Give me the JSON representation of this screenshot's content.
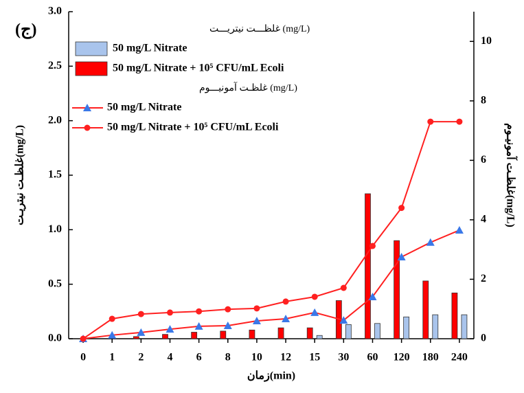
{
  "chart_data": {
    "type": "bar",
    "panel_label": "(ج)",
    "xlabel": "زمان(min)",
    "ylabel": "غلظـت نیتریـت(mg/L)",
    "y2label": "غلظـت آمونیـوم(mg/L)",
    "nitrite_legend_title": "(mg/L) غلظـــت نیتریـــت",
    "ammonium_legend_title": "(mg/L) غلظـت آمونیـــوم",
    "categories": [
      "0",
      "1",
      "2",
      "4",
      "6",
      "8",
      "10",
      "12",
      "15",
      "30",
      "60",
      "120",
      "180",
      "240"
    ],
    "ylim": [
      0,
      3
    ],
    "yticks": [
      {
        "value": 0,
        "label": "0.0"
      },
      0.5,
      {
        "value": 1,
        "label": "1.0"
      },
      1.5,
      {
        "value": 2,
        "label": "2.0"
      },
      2.5,
      {
        "value": 3,
        "label": "3.0"
      }
    ],
    "y2lim": [
      0,
      11
    ],
    "y2ticks": [
      0,
      2,
      4,
      6,
      8,
      10
    ],
    "series": [
      {
        "name": "50 mg/L Nitrate",
        "type": "bar",
        "color": "#a9c4ec",
        "values": [
          0,
          0,
          0,
          0,
          0,
          0,
          0,
          0,
          0.03,
          0.13,
          0.14,
          0.2,
          0.22,
          0.22
        ]
      },
      {
        "name": "50 mg/L Nitrate + 10⁵ CFU/mL Ecoli",
        "type": "bar",
        "color": "#ff0000",
        "values": [
          0,
          0,
          0.02,
          0.04,
          0.06,
          0.07,
          0.08,
          0.1,
          0.1,
          0.35,
          1.33,
          0.9,
          0.53,
          0.42
        ]
      },
      {
        "name": "50 mg/L Nitrate",
        "type": "line",
        "axis": "y2",
        "color": "#ff2020",
        "marker": "triangle",
        "marker_color": "#3a78e8",
        "values": [
          0,
          0.12,
          0.21,
          0.32,
          0.42,
          0.44,
          0.6,
          0.67,
          0.88,
          0.62,
          1.41,
          2.75,
          3.24,
          3.65
        ]
      },
      {
        "name": "50 mg/L Nitrate + 10⁵ CFU/mL Ecoli",
        "type": "line",
        "axis": "y2",
        "color": "#ff2020",
        "marker": "circle",
        "marker_color": "#ff2020",
        "values": [
          0,
          0.67,
          0.83,
          0.88,
          0.92,
          0.99,
          1.02,
          1.25,
          1.41,
          1.71,
          3.12,
          4.4,
          7.3,
          7.3
        ]
      }
    ]
  }
}
